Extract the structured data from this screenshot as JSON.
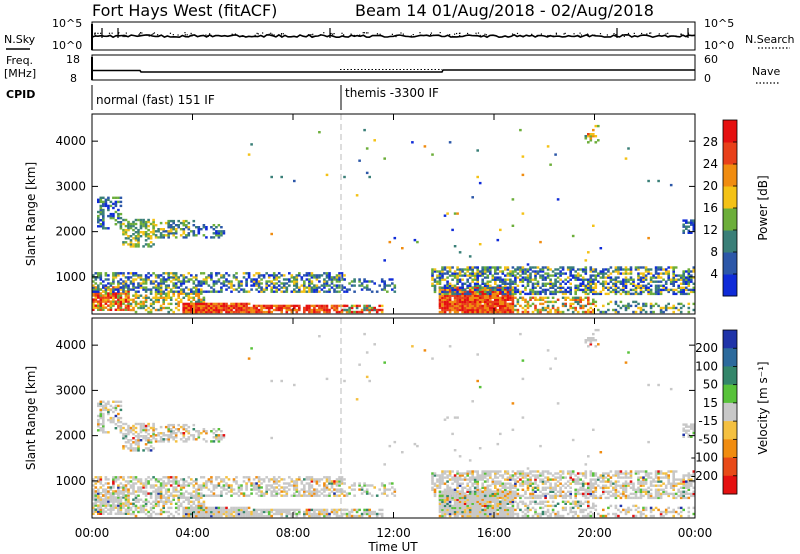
{
  "header": {
    "radar": "Fort Hays West (fitACF)",
    "beam_info": "Beam 14 01/Aug/2018 - 02/Aug/2018"
  },
  "panels": {
    "nsky": {
      "label": "N.Sky",
      "left_ticks": [
        "10^5",
        "10^0"
      ],
      "right_ticks": [
        "10^5",
        "10^0"
      ],
      "right_label": "N.Search"
    },
    "freq": {
      "label_line1": "Freq.",
      "label_line2": "[MHz]",
      "left_ticks": [
        "18",
        "8"
      ],
      "right_ticks": [
        "60",
        "0"
      ],
      "right_label": "Nave"
    },
    "cpid": {
      "label": "CPID",
      "segments": [
        "normal (fast) 151 IF",
        "themis -3300 IF"
      ]
    }
  },
  "chart_data": [
    {
      "type": "heatmap",
      "name": "power",
      "ylabel": "Slant Range [km]",
      "xlabel": "Time UT",
      "x_ticks": [
        "00:00",
        "04:00",
        "08:00",
        "12:00",
        "16:00",
        "20:00",
        "00:00"
      ],
      "x_hours": [
        0,
        4,
        8,
        12,
        16,
        20,
        24
      ],
      "y_ticks": [
        1000,
        2000,
        3000,
        4000
      ],
      "ylim": [
        180,
        4600
      ],
      "xlim_hours": [
        0,
        24
      ],
      "colorbar": {
        "label": "Power [dB]",
        "ticks": [
          4,
          8,
          12,
          16,
          20,
          24,
          28
        ],
        "range": [
          0,
          32
        ],
        "colors": [
          "#0f2bd8",
          "#2c57a8",
          "#3a7f78",
          "#6cae3a",
          "#f4c216",
          "#f08c10",
          "#e8401a",
          "#e51010"
        ]
      }
    },
    {
      "type": "heatmap",
      "name": "velocity",
      "ylabel": "Slant Range [km]",
      "xlabel": "Time UT",
      "x_ticks": [
        "00:00",
        "04:00",
        "08:00",
        "12:00",
        "16:00",
        "20:00",
        "00:00"
      ],
      "x_hours": [
        0,
        4,
        8,
        12,
        16,
        20,
        24
      ],
      "y_ticks": [
        1000,
        2000,
        3000,
        4000
      ],
      "ylim": [
        180,
        4600
      ],
      "xlim_hours": [
        0,
        24
      ],
      "colorbar": {
        "label": "Velocity [m s⁻¹]",
        "ticks": [
          "200",
          "100",
          "50",
          "15",
          "-15",
          "-50",
          "-100",
          "-200"
        ],
        "colors": [
          "#1f33a8",
          "#2c6a9c",
          "#34866a",
          "#58c23a",
          "#c8c8c8",
          "#f4c040",
          "#f08c10",
          "#e84a18",
          "#e51010"
        ]
      }
    }
  ],
  "footer": {
    "xlabel": "Time UT"
  }
}
